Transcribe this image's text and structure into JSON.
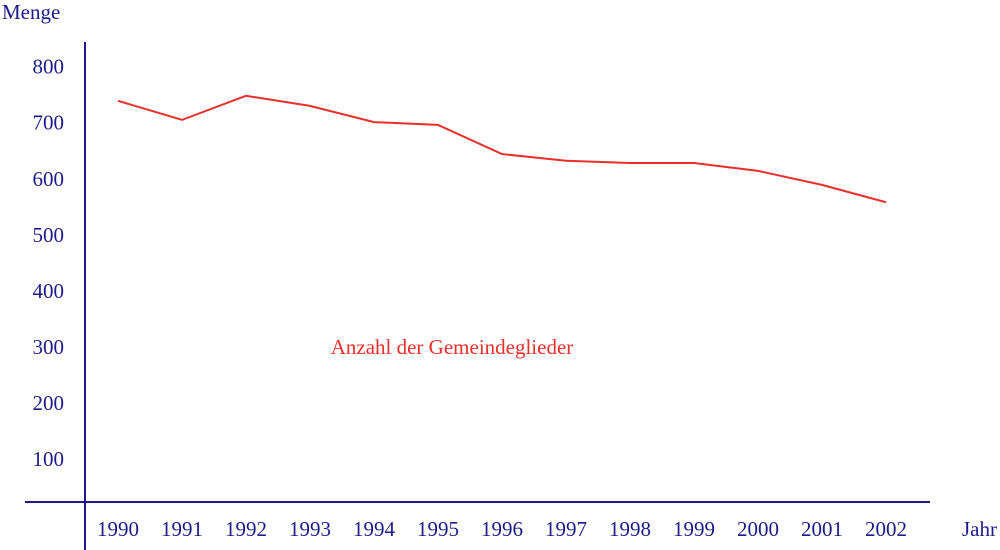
{
  "chart_data": {
    "type": "line",
    "y_label": "Menge",
    "x_label": "Jahr",
    "annotation": "Anzahl der Gemeindeglieder",
    "categories": [
      "1990",
      "1991",
      "1992",
      "1993",
      "1994",
      "1995",
      "1996",
      "1997",
      "1998",
      "1999",
      "2000",
      "2001",
      "2002"
    ],
    "series": [
      {
        "name": "Anzahl der Gemeindeglieder",
        "color": "#e8302a",
        "values": [
          743,
          709,
          752,
          734,
          705,
          700,
          648,
          636,
          632,
          632,
          618,
          593,
          562
        ]
      }
    ],
    "ylim": [
      27,
      848
    ],
    "yticks": [
      100,
      200,
      300,
      400,
      500,
      600,
      700,
      800
    ],
    "grid": false
  }
}
